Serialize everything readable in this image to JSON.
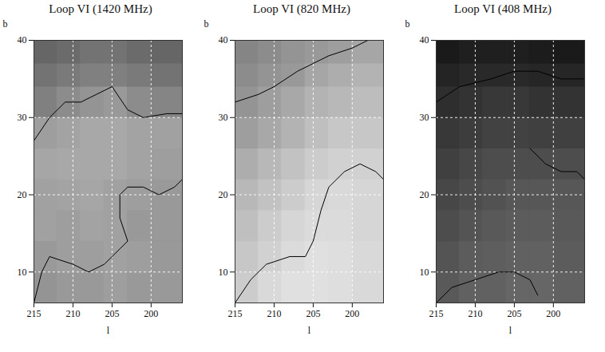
{
  "chart_data": [
    {
      "type": "heatmap",
      "title": "Loop VI (1420 MHz)",
      "x_label": "l",
      "y_label": "b",
      "xlim": [
        215,
        196
      ],
      "ylim": [
        6,
        40
      ],
      "xticks": [
        215,
        210,
        205,
        200
      ],
      "yticks": [
        10,
        20,
        30,
        40
      ],
      "grid": true,
      "zlim": [
        0,
        1
      ],
      "cells": {
        "x_edges": [
          215,
          212,
          209,
          206,
          203,
          200,
          196
        ],
        "y_edges": [
          6,
          10,
          14,
          18,
          22,
          26,
          30,
          34,
          37,
          40
        ],
        "values": [
          [
            0.58,
            0.6,
            0.6,
            0.62,
            0.6,
            0.6
          ],
          [
            0.6,
            0.62,
            0.62,
            0.63,
            0.62,
            0.6
          ],
          [
            0.63,
            0.62,
            0.64,
            0.63,
            0.6,
            0.6
          ],
          [
            0.63,
            0.64,
            0.65,
            0.63,
            0.62,
            0.6
          ],
          [
            0.65,
            0.66,
            0.66,
            0.66,
            0.64,
            0.62
          ],
          [
            0.62,
            0.64,
            0.66,
            0.66,
            0.64,
            0.63
          ],
          [
            0.5,
            0.55,
            0.58,
            0.6,
            0.55,
            0.52
          ],
          [
            0.45,
            0.48,
            0.5,
            0.5,
            0.48,
            0.45
          ],
          [
            0.4,
            0.42,
            0.45,
            0.45,
            0.42,
            0.4
          ]
        ]
      },
      "contours": [
        [
          [
            215,
            27
          ],
          [
            213,
            30
          ],
          [
            212,
            31
          ],
          [
            211,
            32
          ],
          [
            209,
            32
          ],
          [
            207,
            33
          ],
          [
            205,
            34
          ],
          [
            203,
            31
          ],
          [
            201,
            30
          ],
          [
            198,
            30.5
          ],
          [
            196,
            30.5
          ]
        ],
        [
          [
            215,
            6
          ],
          [
            214,
            10
          ],
          [
            213,
            12
          ],
          [
            210,
            11
          ],
          [
            208,
            10
          ],
          [
            206,
            11
          ],
          [
            204,
            13
          ],
          [
            203,
            14
          ],
          [
            204,
            17
          ],
          [
            204,
            20
          ],
          [
            203,
            21
          ],
          [
            201,
            21
          ],
          [
            199,
            20
          ],
          [
            197,
            21
          ],
          [
            196,
            22
          ]
        ]
      ]
    },
    {
      "type": "heatmap",
      "title": "Loop VI (820 MHz)",
      "x_label": "l",
      "y_label": "b",
      "xlim": [
        215,
        196
      ],
      "ylim": [
        6,
        40
      ],
      "xticks": [
        215,
        210,
        205,
        200
      ],
      "yticks": [
        10,
        20,
        30,
        40
      ],
      "grid": true,
      "zlim": [
        0,
        1
      ],
      "cells": {
        "x_edges": [
          215,
          212,
          209,
          206,
          203,
          200,
          196
        ],
        "y_edges": [
          6,
          10,
          14,
          18,
          22,
          26,
          30,
          34,
          37,
          40
        ],
        "values": [
          [
            0.8,
            0.85,
            0.88,
            0.88,
            0.87,
            0.85
          ],
          [
            0.78,
            0.82,
            0.86,
            0.88,
            0.87,
            0.85
          ],
          [
            0.75,
            0.8,
            0.84,
            0.86,
            0.86,
            0.84
          ],
          [
            0.72,
            0.76,
            0.8,
            0.84,
            0.85,
            0.84
          ],
          [
            0.68,
            0.72,
            0.76,
            0.8,
            0.82,
            0.82
          ],
          [
            0.62,
            0.66,
            0.7,
            0.75,
            0.78,
            0.78
          ],
          [
            0.58,
            0.62,
            0.66,
            0.7,
            0.72,
            0.74
          ],
          [
            0.55,
            0.58,
            0.6,
            0.65,
            0.68,
            0.7
          ],
          [
            0.52,
            0.55,
            0.58,
            0.6,
            0.62,
            0.65
          ]
        ]
      },
      "contours": [
        [
          [
            215,
            32
          ],
          [
            212,
            33
          ],
          [
            210,
            34
          ],
          [
            207,
            36
          ],
          [
            205,
            37
          ],
          [
            203,
            38
          ],
          [
            200,
            39
          ],
          [
            198,
            40
          ]
        ],
        [
          [
            215,
            6
          ],
          [
            213,
            9
          ],
          [
            211,
            11
          ],
          [
            208,
            12
          ],
          [
            206,
            12
          ],
          [
            205,
            14
          ],
          [
            204,
            18
          ],
          [
            203,
            21
          ],
          [
            201,
            23
          ],
          [
            199,
            24
          ],
          [
            197,
            23
          ],
          [
            196,
            22
          ]
        ]
      ]
    },
    {
      "type": "heatmap",
      "title": "Loop VI (408 MHz)",
      "x_label": "l",
      "y_label": "b",
      "xlim": [
        215,
        196
      ],
      "ylim": [
        6,
        40
      ],
      "xticks": [
        215,
        210,
        205,
        200
      ],
      "yticks": [
        10,
        20,
        30,
        40
      ],
      "grid": true,
      "zlim": [
        0,
        1
      ],
      "cells": {
        "x_edges": [
          215,
          212,
          209,
          206,
          203,
          200,
          196
        ],
        "y_edges": [
          6,
          10,
          14,
          18,
          22,
          26,
          30,
          34,
          37,
          40
        ],
        "values": [
          [
            0.35,
            0.38,
            0.38,
            0.4,
            0.4,
            0.38
          ],
          [
            0.33,
            0.36,
            0.37,
            0.38,
            0.38,
            0.36
          ],
          [
            0.3,
            0.33,
            0.35,
            0.36,
            0.36,
            0.35
          ],
          [
            0.28,
            0.3,
            0.32,
            0.34,
            0.34,
            0.34
          ],
          [
            0.25,
            0.28,
            0.3,
            0.3,
            0.3,
            0.3
          ],
          [
            0.22,
            0.24,
            0.26,
            0.26,
            0.25,
            0.25
          ],
          [
            0.18,
            0.2,
            0.22,
            0.22,
            0.2,
            0.2
          ],
          [
            0.14,
            0.16,
            0.16,
            0.16,
            0.15,
            0.15
          ],
          [
            0.1,
            0.12,
            0.12,
            0.12,
            0.11,
            0.1
          ]
        ]
      },
      "contours": [
        [
          [
            215,
            32
          ],
          [
            212,
            34
          ],
          [
            208,
            35
          ],
          [
            205,
            36
          ],
          [
            202,
            36
          ],
          [
            199,
            35
          ],
          [
            196,
            35
          ]
        ],
        [
          [
            203,
            26
          ],
          [
            201,
            24
          ],
          [
            199,
            23
          ],
          [
            197,
            23
          ],
          [
            196,
            22
          ]
        ],
        [
          [
            215,
            6
          ],
          [
            213,
            8
          ],
          [
            210,
            9
          ],
          [
            207,
            10
          ],
          [
            205,
            10
          ],
          [
            203,
            9
          ],
          [
            202,
            7
          ]
        ]
      ]
    }
  ]
}
